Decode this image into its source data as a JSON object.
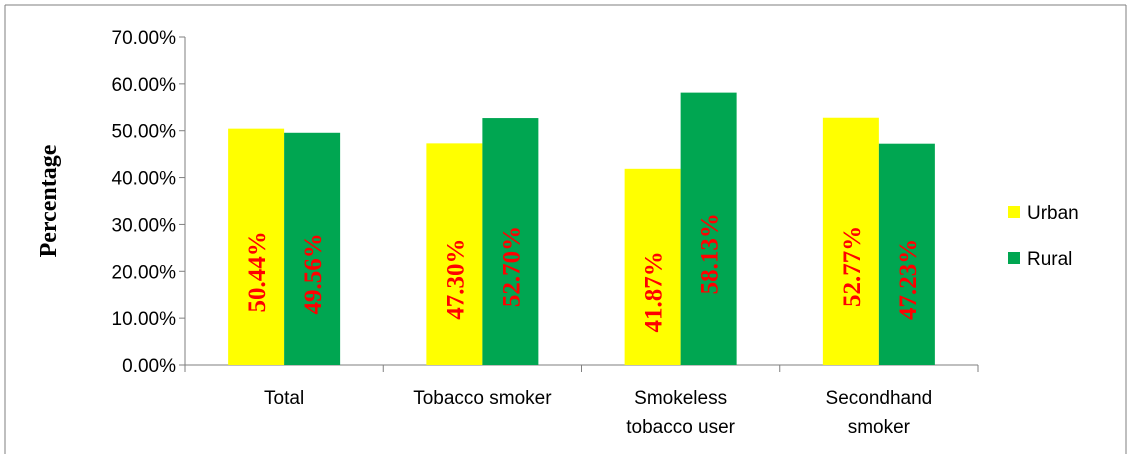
{
  "chart_data": {
    "type": "bar",
    "title": "",
    "xlabel": "",
    "ylabel": "Percentage",
    "ylim": [
      0,
      70
    ],
    "yticks": [
      "0.00%",
      "10.00%",
      "20.00%",
      "30.00%",
      "40.00%",
      "50.00%",
      "60.00%",
      "70.00%"
    ],
    "categories": [
      [
        "Total"
      ],
      [
        "Tobacco smoker"
      ],
      [
        "Smokeless",
        "tobacco user"
      ],
      [
        "Secondhand",
        "smoker"
      ]
    ],
    "series": [
      {
        "name": "Urban",
        "color": "#ffff00",
        "values": [
          50.44,
          47.3,
          41.87,
          52.77
        ],
        "labels": [
          "50.44%",
          "47.30%",
          "41.87%",
          "52.77%"
        ]
      },
      {
        "name": "Rural",
        "color": "#00a651",
        "values": [
          49.56,
          52.7,
          58.13,
          47.23
        ],
        "labels": [
          "49.56%",
          "52.70%",
          "58.13%",
          "47.23%"
        ]
      }
    ],
    "data_label_color": "#ff0000",
    "grid": false,
    "legend_position": "right"
  }
}
